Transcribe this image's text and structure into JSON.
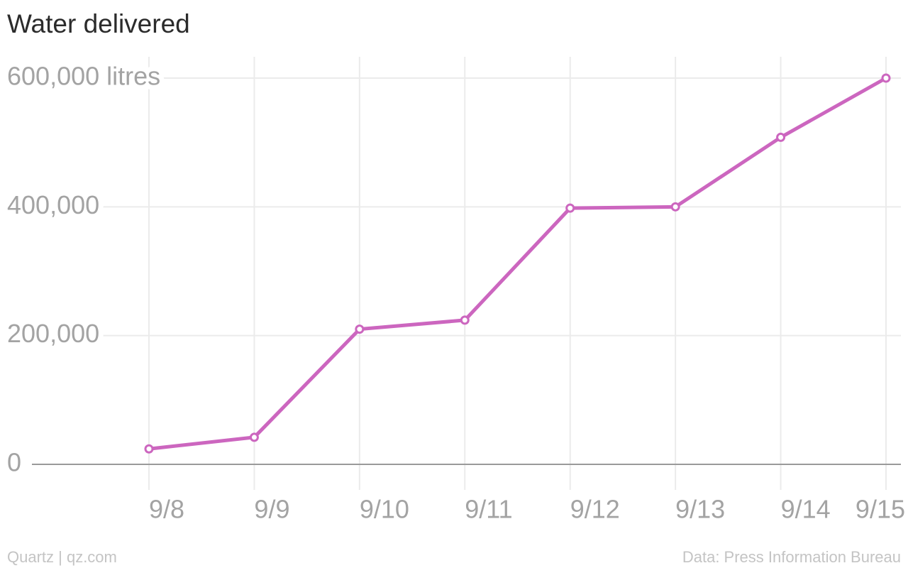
{
  "chart_data": {
    "type": "line",
    "title": "Water delivered",
    "categories": [
      "9/8",
      "9/9",
      "9/10",
      "9/11",
      "9/12",
      "9/13",
      "9/14",
      "9/15"
    ],
    "series": [
      {
        "name": "Water delivered",
        "color": "#cc66bf",
        "values": [
          24000,
          42000,
          210000,
          224000,
          398000,
          400000,
          508000,
          600000
        ]
      }
    ],
    "ylim": [
      0,
      600000
    ],
    "yticks": [
      0,
      {
        "value": 200000,
        "label": "200,000"
      },
      {
        "value": 400000,
        "label": "400,000"
      },
      {
        "value": 600000,
        "label": "600,000 litres"
      }
    ],
    "grid": true,
    "source": "Data: Press Information Bureau",
    "credit": "Quartz | qz.com"
  }
}
